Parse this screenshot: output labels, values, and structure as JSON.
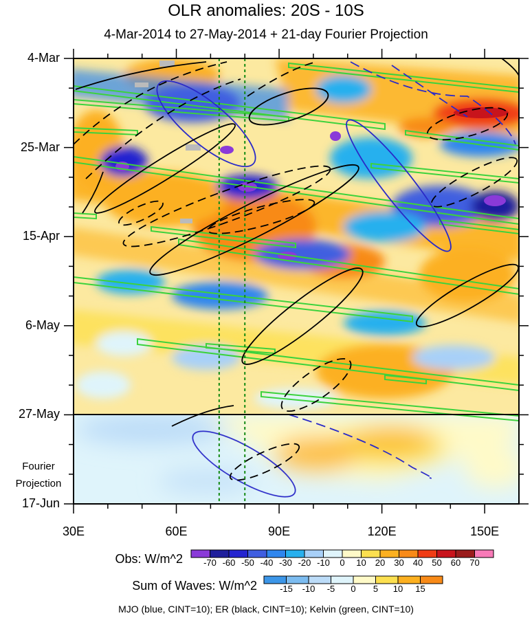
{
  "chart_data": {
    "type": "heatmap",
    "title": "OLR anomalies: 20S - 10S",
    "subtitle": "4-Mar-2014 to 27-May-2014 + 21-day Fourier Projection",
    "x_ticks": [
      "30E",
      "60E",
      "90E",
      "120E",
      "150E"
    ],
    "x_range": [
      30,
      160
    ],
    "y_ticks": [
      "4-Mar",
      "25-Mar",
      "15-Apr",
      "6-May",
      "27-May",
      "17-Jun"
    ],
    "y_range": [
      "2014-03-04",
      "2014-06-17"
    ],
    "projection_label": [
      "Fourier",
      "Projection"
    ],
    "projection_start": "27-May",
    "reference_lines_lon": [
      72.5,
      80
    ],
    "obs_colorbar": {
      "title": "Obs: W/m^2",
      "levels": [
        "-70",
        "-60",
        "-50",
        "-40",
        "-30",
        "-20",
        "-10",
        "0",
        "10",
        "20",
        "30",
        "40",
        "50",
        "60",
        "70"
      ],
      "colors": [
        "#8a3ad8",
        "#1f1f9c",
        "#2424d0",
        "#3f5ee0",
        "#2f86ee",
        "#28b0ee",
        "#a8d0f8",
        "#dff4fb",
        "#fffac8",
        "#fce050",
        "#fcb020",
        "#f88a18",
        "#f03c14",
        "#c8141c",
        "#9a1c1c",
        "#f87ab8"
      ]
    },
    "waves_colorbar": {
      "title": "Sum of Waves: W/m^2",
      "levels": [
        "-15",
        "-10",
        "-5",
        "0",
        "5",
        "10",
        "15"
      ],
      "colors": [
        "#3c96e8",
        "#7cbcf0",
        "#bcdcf8",
        "#dff4fb",
        "#fffac8",
        "#fce050",
        "#fcb020",
        "#f88a18"
      ]
    },
    "contour_series": [
      {
        "name": "MJO",
        "color": "#2a2ac8"
      },
      {
        "name": "ER",
        "color": "#000000"
      },
      {
        "name": "Kelvin",
        "color": "#3cd23c"
      }
    ],
    "caption": "MJO (blue, CINT=10); ER (black, CINT=10); Kelvin (green, CINT=10)"
  }
}
